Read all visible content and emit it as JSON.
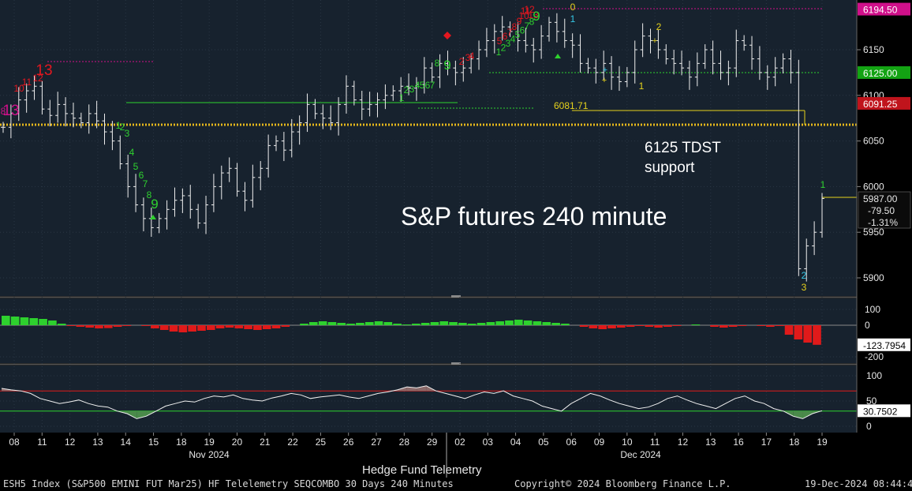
{
  "chart_data": {
    "type": "candlestick",
    "title": "S&P futures 240 minute",
    "annotation": "6125 TDST support",
    "y_ticks": [
      5900,
      5950,
      6000,
      6050,
      6100,
      6150
    ],
    "ylim": [
      5875,
      6205
    ],
    "x_ticks": [
      "08",
      "11",
      "12",
      "13",
      "14",
      "15",
      "18",
      "19",
      "20",
      "21",
      "22",
      "25",
      "26",
      "27",
      "28",
      "29",
      "02",
      "03",
      "04",
      "05",
      "06",
      "09",
      "10",
      "11",
      "12",
      "13",
      "16",
      "17",
      "18",
      "19"
    ],
    "month_labels": [
      "Nov 2024",
      "Dec 2024"
    ],
    "axis_title": "Hedge Fund Telemetry",
    "price_path": [
      6065,
      6080,
      6095,
      6105,
      6110,
      6085,
      6078,
      6090,
      6080,
      6075,
      6070,
      6080,
      6072,
      6060,
      6050,
      6025,
      6000,
      5980,
      5965,
      5955,
      5965,
      5975,
      5985,
      5990,
      5975,
      5960,
      5980,
      6000,
      6015,
      6020,
      5995,
      5985,
      6010,
      6020,
      6045,
      6050,
      6040,
      6060,
      6070,
      6090,
      6080,
      6075,
      6070,
      6090,
      6110,
      6095,
      6085,
      6090,
      6095,
      6100,
      6105,
      6110,
      6108,
      6112,
      6130,
      6120,
      6135,
      6130,
      6125,
      6130,
      6140,
      6150,
      6160,
      6170,
      6175,
      6170,
      6160,
      6155,
      6150,
      6165,
      6180,
      6170,
      6160,
      6155,
      6135,
      6130,
      6125,
      6135,
      6120,
      6115,
      6125,
      6150,
      6165,
      6160,
      6150,
      6140,
      6135,
      6130,
      6120,
      6135,
      6150,
      6135,
      6125,
      6130,
      6160,
      6155,
      6140,
      6125,
      6120,
      6130,
      6140,
      6125,
      5910,
      5935,
      5950,
      5987
    ],
    "price_labels": [
      {
        "text": "6194.50",
        "value": 6194.5,
        "color": "#d0108a"
      },
      {
        "text": "6125.00",
        "value": 6125.0,
        "color": "#13a313"
      },
      {
        "text": "6091.25",
        "value": 6091.25,
        "color": "#c0141c"
      }
    ],
    "last_price": {
      "price": "5987.00",
      "change": "-79.50",
      "pct": "-1.31%"
    },
    "level_annotation": "6081.71",
    "sequential_counts_left": [
      "8",
      "13",
      "10",
      "11",
      "12",
      "13"
    ],
    "sequential_counts_buy": [
      "1",
      "2",
      "3",
      "4",
      "5",
      "6",
      "7",
      "8",
      "9"
    ],
    "sequential_counts_mid": [
      "1",
      "2",
      "3",
      "4",
      "5",
      "6",
      "7",
      "8",
      "9"
    ],
    "sequential_counts_top": [
      "2",
      "3",
      "4",
      "5",
      "6",
      "7",
      "8",
      "9",
      "10",
      "11",
      "12",
      "13",
      "0",
      "1"
    ],
    "sequential_counts_right": [
      "2",
      "1",
      "1",
      "2",
      "3",
      "1"
    ],
    "indicator1": {
      "y_ticks": [
        100,
        0,
        -200
      ],
      "last_label": "-123.7954",
      "values": [
        60,
        55,
        50,
        45,
        40,
        30,
        10,
        -5,
        -10,
        -15,
        -20,
        -18,
        -10,
        -5,
        0,
        -5,
        -20,
        -30,
        -40,
        -45,
        -40,
        -35,
        -30,
        -20,
        -15,
        -20,
        -25,
        -30,
        -25,
        -20,
        -10,
        0,
        10,
        20,
        25,
        20,
        15,
        10,
        15,
        20,
        25,
        20,
        10,
        5,
        10,
        15,
        20,
        25,
        20,
        15,
        10,
        15,
        20,
        25,
        30,
        35,
        30,
        25,
        20,
        15,
        10,
        0,
        -10,
        -20,
        -25,
        -20,
        -15,
        -10,
        -5,
        -10,
        -15,
        -10,
        -5,
        0,
        5,
        0,
        -10,
        -15,
        -10,
        -5,
        0,
        -5,
        -10,
        -5,
        -60,
        -90,
        -110,
        -124
      ]
    },
    "indicator2": {
      "y_ticks": [
        100,
        50,
        0
      ],
      "last_label": "30.7502",
      "levels": [
        70,
        30
      ],
      "values": [
        75,
        72,
        70,
        65,
        55,
        50,
        45,
        48,
        52,
        45,
        40,
        38,
        30,
        25,
        15,
        20,
        30,
        40,
        45,
        50,
        48,
        55,
        60,
        58,
        62,
        55,
        52,
        50,
        56,
        60,
        65,
        62,
        55,
        58,
        60,
        62,
        58,
        55,
        60,
        65,
        68,
        72,
        78,
        76,
        80,
        70,
        65,
        60,
        55,
        62,
        68,
        65,
        70,
        60,
        55,
        50,
        40,
        35,
        30,
        45,
        55,
        65,
        60,
        52,
        45,
        40,
        35,
        38,
        45,
        55,
        60,
        52,
        45,
        40,
        35,
        45,
        55,
        60,
        50,
        45,
        35,
        30,
        20,
        15,
        25,
        30.75
      ]
    },
    "footer_left": "ESH5 Index (S&P500 EMINI FUT  Mar25) HF Telelemetry SEQCOMBO 30 Days 240 Minutes",
    "footer_center": "Copyright© 2024 Bloomberg Finance L.P.",
    "footer_right": "19-Dec-2024 08:44:44",
    "colors": {
      "panel_bg": "#17222e",
      "sell_count": "#e4171f",
      "buy_count": "#2ed12e",
      "tdst_line": "#2ed12e",
      "yellow": "#e6d21c",
      "magenta": "#d0108a"
    }
  }
}
